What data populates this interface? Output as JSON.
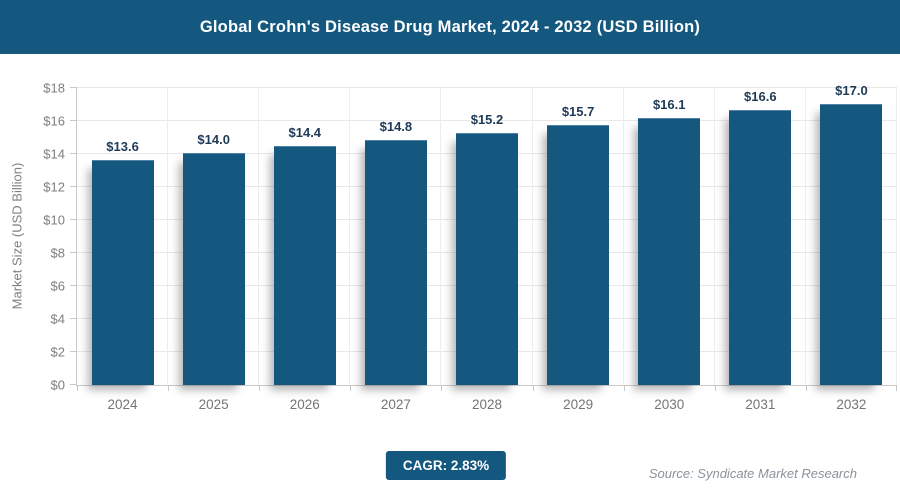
{
  "header": {
    "title": "Global Crohn's Disease Drug Market, 2024 - 2032 (USD Billion)"
  },
  "colors": {
    "primary": "#14587F",
    "bar": "#14587F",
    "data_label": "#1F3A56",
    "axis_text": "#7f7f7f",
    "gridline": "#e8e8e8",
    "source_text": "#8A939B"
  },
  "chart_data": {
    "type": "bar",
    "title": "Global Crohn's Disease Drug Market, 2024 - 2032 (USD Billion)",
    "categories": [
      "2024",
      "2025",
      "2026",
      "2027",
      "2028",
      "2029",
      "2030",
      "2031",
      "2032"
    ],
    "values": [
      13.6,
      14.0,
      14.4,
      14.8,
      15.2,
      15.7,
      16.1,
      16.6,
      17.0
    ],
    "data_labels": [
      "$13.6",
      "$14.0",
      "$14.4",
      "$14.8",
      "$15.2",
      "$15.7",
      "$16.1",
      "$16.6",
      "$17.0"
    ],
    "xlabel": "",
    "ylabel": "Market Size (USD Billion)",
    "ylim": [
      0,
      18
    ],
    "ytick_step": 2,
    "ytick_labels": [
      "$0",
      "$2",
      "$4",
      "$6",
      "$8",
      "$10",
      "$12",
      "$14",
      "$16",
      "$18"
    ],
    "grid": true,
    "legend": "none",
    "bar_color": "#14587F"
  },
  "footer": {
    "cagr_label": "CAGR: 2.83%",
    "source": "Source: Syndicate Market Research"
  }
}
